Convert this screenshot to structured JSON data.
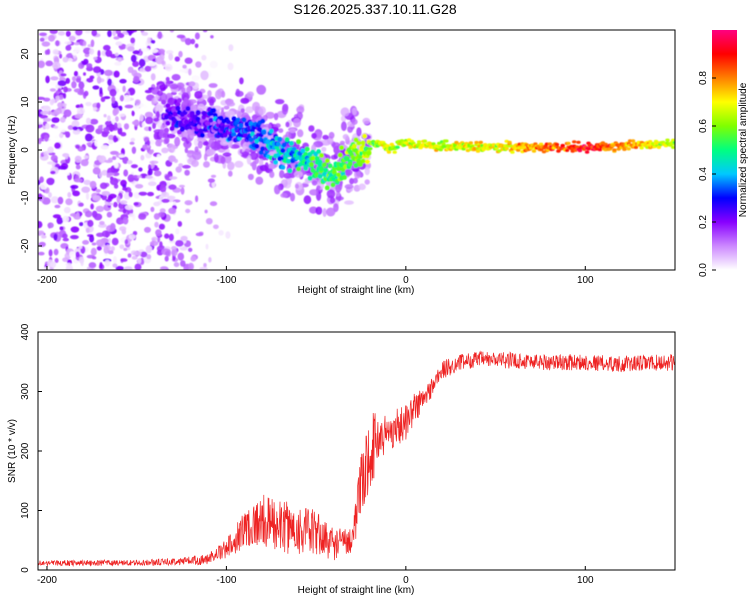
{
  "title": "S126.2025.337.10.11.G28",
  "chart_data": [
    {
      "type": "heatmap",
      "title": "S126.2025.337.10.11.G28",
      "xlabel": "Height of straight line (km)",
      "ylabel": "Frequency (Hz)",
      "xlim": [
        -205,
        150
      ],
      "ylim": [
        -25,
        25
      ],
      "xticks": [
        -200,
        -100,
        0,
        100
      ],
      "yticks": [
        -20,
        -10,
        0,
        10,
        20
      ],
      "colorbar": {
        "label": "Normalized spectral amplitude",
        "range": [
          0,
          1
        ],
        "ticks": [
          "0.0",
          "0.2",
          "0.4",
          "0.6",
          "0.8"
        ],
        "colors": [
          "#ffffff",
          "#cc88ff",
          "#8800ff",
          "#0000ff",
          "#00c8ff",
          "#00ff80",
          "#80ff00",
          "#ffff00",
          "#ff8000",
          "#ff0000",
          "#ff0080"
        ]
      },
      "ridge": {
        "description_points_x": [
          -130,
          -110,
          -90,
          -80,
          -70,
          -60,
          -50,
          -40,
          -35,
          -30,
          -25,
          -20,
          -15,
          -10,
          -5,
          0,
          5,
          10,
          50,
          100,
          150
        ],
        "description_points_y": [
          7,
          5,
          4,
          2,
          0,
          -1,
          -3,
          -6,
          -3,
          0,
          -1,
          1,
          2,
          0,
          1,
          2,
          1,
          1,
          0.5,
          0.5,
          1.5
        ],
        "amplitude": [
          0.2,
          0.25,
          0.3,
          0.35,
          0.4,
          0.45,
          0.5,
          0.5,
          0.55,
          0.6,
          0.6,
          0.62,
          0.65,
          0.65,
          0.66,
          0.68,
          0.68,
          0.68,
          0.68,
          0.9,
          0.65
        ]
      },
      "noise_region": {
        "x": [
          -205,
          -100
        ],
        "amplitude": 0.15
      }
    },
    {
      "type": "line",
      "xlabel": "Height of straight line (km)",
      "ylabel": "SNR (10 * v/v)",
      "xlim": [
        -205,
        150
      ],
      "ylim": [
        0,
        400
      ],
      "xticks": [
        -200,
        -100,
        0,
        100
      ],
      "yticks": [
        0,
        100,
        200,
        300,
        400
      ],
      "color": "#ee2222",
      "series": [
        {
          "name": "SNR",
          "x": [
            -205,
            -190,
            -170,
            -150,
            -130,
            -110,
            -100,
            -90,
            -80,
            -70,
            -60,
            -50,
            -40,
            -30,
            -25,
            -20,
            -15,
            -10,
            -5,
            0,
            5,
            10,
            15,
            20,
            30,
            40,
            60,
            80,
            100,
            120,
            150
          ],
          "mean": [
            12,
            12,
            12,
            12,
            14,
            18,
            30,
            60,
            70,
            60,
            55,
            50,
            35,
            45,
            120,
            180,
            210,
            220,
            230,
            240,
            265,
            280,
            305,
            330,
            345,
            350,
            348,
            345,
            345,
            342,
            345
          ],
          "spread": [
            8,
            8,
            8,
            8,
            10,
            15,
            30,
            60,
            80,
            80,
            80,
            70,
            50,
            40,
            100,
            120,
            80,
            60,
            60,
            55,
            50,
            40,
            30,
            30,
            25,
            25,
            25,
            25,
            25,
            25,
            25
          ]
        }
      ]
    }
  ]
}
